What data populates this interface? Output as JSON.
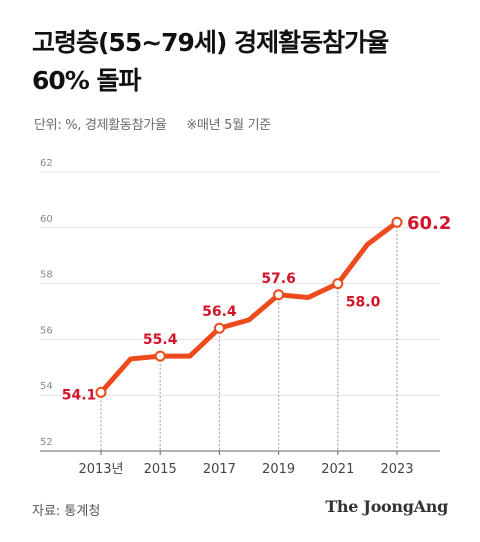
{
  "title_line1": "고령층(55~79세) 경제활동참가율",
  "title_line2": "60% 돌파",
  "unit_label": "단위: %, 경제활동참가율",
  "basis_note": "※매년 5월 기준",
  "source": "자료: 통계청",
  "brand": "The JoongAng",
  "colors": {
    "line": "#ee4b1c",
    "label": "#d3142a",
    "axis": "#555555",
    "grid": "#e3e3e3"
  },
  "chart_data": {
    "type": "line",
    "x_labels": [
      "2013년",
      "2015",
      "2017",
      "2019",
      "2021",
      "2023"
    ],
    "y_ticks": [
      "52",
      "54",
      "56",
      "58",
      "60",
      "62"
    ],
    "ylim": [
      52,
      62
    ],
    "xlim": [
      2013,
      2023
    ],
    "series": [
      {
        "x": [
          2013,
          2014,
          2015,
          2016,
          2017,
          2018,
          2019,
          2020,
          2021,
          2022,
          2023
        ],
        "values": [
          54.1,
          55.3,
          55.4,
          55.4,
          56.4,
          56.7,
          57.6,
          57.5,
          58.0,
          59.4,
          60.2
        ]
      }
    ],
    "data_labels": [
      {
        "x": 2013,
        "text": "54.1"
      },
      {
        "x": 2015,
        "text": "55.4"
      },
      {
        "x": 2017,
        "text": "56.4"
      },
      {
        "x": 2019,
        "text": "57.6"
      },
      {
        "x": 2021,
        "text": "58.0"
      },
      {
        "x": 2023,
        "text": "60.2"
      }
    ]
  }
}
